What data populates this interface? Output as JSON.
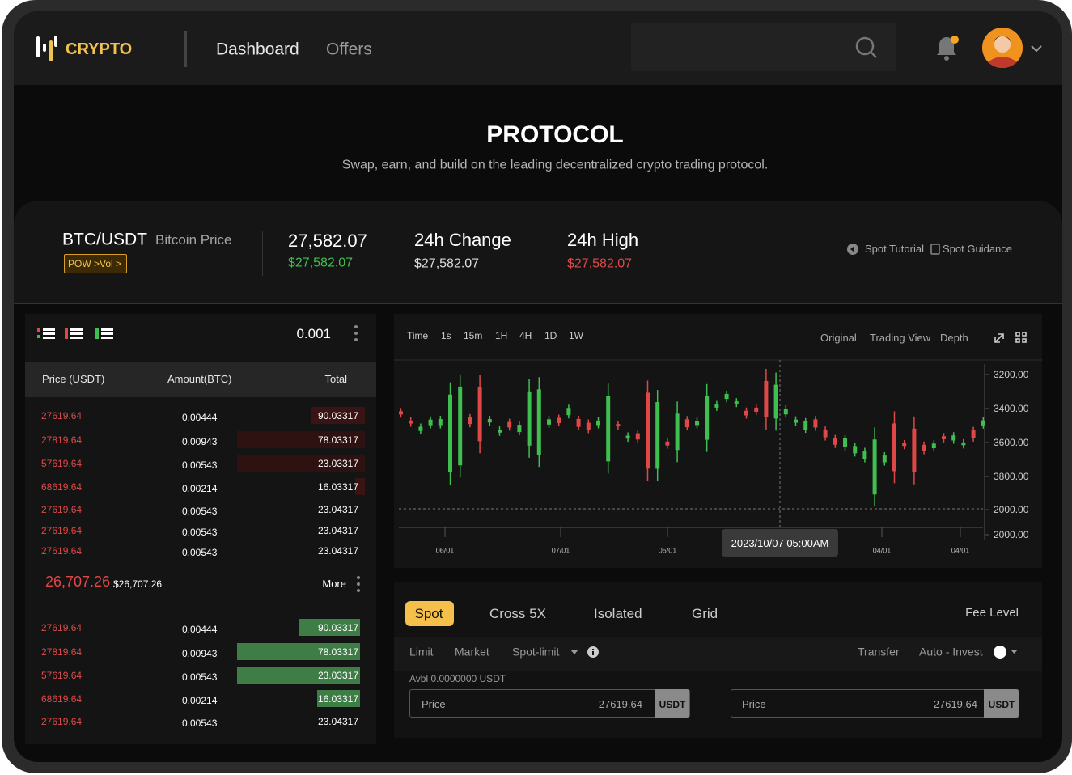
{
  "header": {
    "logo": "CRYPTO",
    "nav": [
      "Dashboard",
      "Offers"
    ]
  },
  "hero": {
    "title": "PROTOCOL",
    "subtitle": "Swap, earn, and build on the leading decentralized crypto trading protocol."
  },
  "ticker": {
    "pair": "BTC/USDT",
    "pair_name": "Bitcoin Price",
    "badge": "POW >Vol >",
    "price": "27,582.07",
    "price_usd": "$27,582.07",
    "change_label": "24h Change",
    "change_value": "$27,582.07",
    "high_label": "24h High",
    "high_value": "$27,582.07",
    "links": [
      "Spot Tutorial",
      "Spot Guidance"
    ]
  },
  "orderbook": {
    "precision": "0.001",
    "columns": [
      "Price (USDT)",
      "Amount(BTC)",
      "Total"
    ],
    "asks": [
      [
        "27619.64",
        "0.00444",
        "90.03317"
      ],
      [
        "27819.64",
        "0.00943",
        "78.03317"
      ],
      [
        "57619.64",
        "0.00543",
        "23.03317"
      ],
      [
        "68619.64",
        "0.00214",
        "16.03317"
      ],
      [
        "27619.64",
        "0.00543",
        "23.04317"
      ],
      [
        "27619.64",
        "0.00543",
        "23.04317"
      ],
      [
        "27619.64",
        "0.00543",
        "23.04317"
      ]
    ],
    "last_price": "26,707.26",
    "last_price_usd": "$26,707.26",
    "more": "More",
    "bids": [
      [
        "27619.64",
        "0.00444",
        "90.03317"
      ],
      [
        "27819.64",
        "0.00943",
        "78.03317"
      ],
      [
        "57619.64",
        "0.00543",
        "23.03317"
      ],
      [
        "68619.64",
        "0.00214",
        "16.03317"
      ],
      [
        "27619.64",
        "0.00543",
        "23.04317"
      ]
    ]
  },
  "chart": {
    "intervals": [
      "Time",
      "1s",
      "15m",
      "1H",
      "4H",
      "1D",
      "1W"
    ],
    "views": [
      "Original",
      "Trading View",
      "Depth"
    ],
    "y_labels": [
      "3200.00",
      "3400.00",
      "3600.00",
      "3800.00",
      "2000.00",
      "2000.00"
    ],
    "x_labels": [
      "06/01",
      "07/01",
      "05/01",
      "04/01",
      "04/01"
    ],
    "tooltip": "2023/10/07 05:00AM"
  },
  "trade": {
    "tabs": [
      "Spot",
      "Cross 5X",
      "Isolated",
      "Grid"
    ],
    "fee_level": "Fee Level",
    "order_types": [
      "Limit",
      "Market",
      "Spot-limit"
    ],
    "options": [
      "Transfer",
      "Auto - Invest"
    ],
    "available": "Avbl 0.0000000 USDT",
    "inputs": [
      {
        "label": "Price",
        "value": "27619.64",
        "unit": "USDT"
      },
      {
        "label": "Price",
        "value": "27619.64",
        "unit": "USDT"
      }
    ]
  }
}
